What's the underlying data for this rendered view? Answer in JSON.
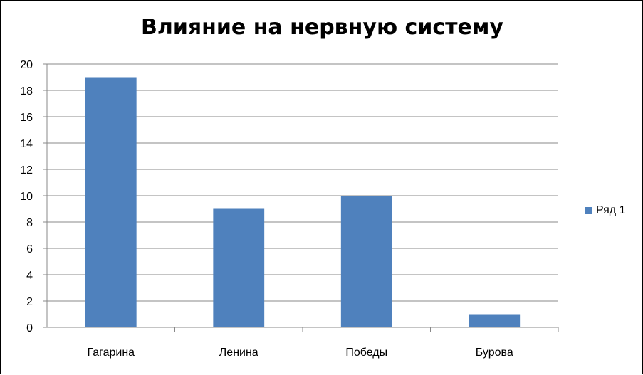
{
  "chart_data": {
    "type": "bar",
    "title": "Влияние на нервную систему",
    "categories": [
      "Гагарина",
      "Ленина",
      "Победы",
      "Бурова"
    ],
    "series": [
      {
        "name": "Ряд 1",
        "values": [
          19,
          9,
          10,
          1
        ],
        "color": "#4F81BD"
      }
    ],
    "ylim": [
      0,
      20
    ],
    "yticks": [
      0,
      2,
      4,
      6,
      8,
      10,
      12,
      14,
      16,
      18,
      20
    ],
    "grid": true,
    "legend_position": "right"
  }
}
